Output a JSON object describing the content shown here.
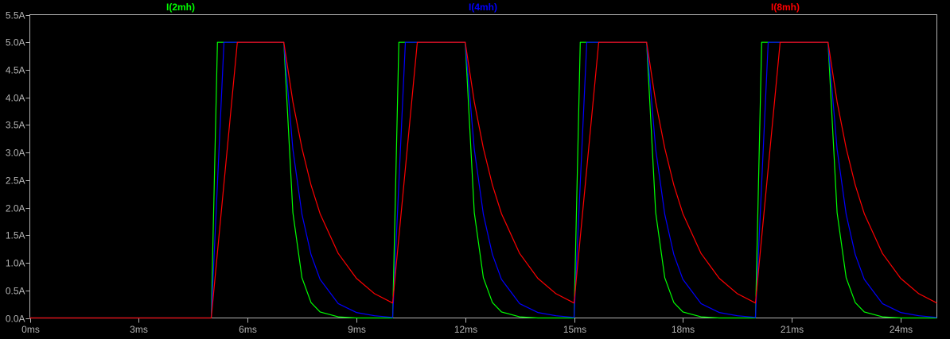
{
  "chart_data": {
    "type": "line",
    "title": "",
    "xlabel": "",
    "ylabel": "",
    "xlim": [
      0,
      25
    ],
    "ylim": [
      0,
      5.5
    ],
    "x_unit": "ms",
    "y_unit": "A",
    "x_ticks": [
      "0ms",
      "3ms",
      "6ms",
      "9ms",
      "12ms",
      "15ms",
      "18ms",
      "21ms",
      "24ms"
    ],
    "x_tick_values": [
      0,
      3,
      6,
      9,
      12,
      15,
      18,
      21,
      24
    ],
    "y_ticks": [
      "0.0A",
      "0.5A",
      "1.0A",
      "1.5A",
      "2.0A",
      "2.5A",
      "3.0A",
      "3.5A",
      "4.0A",
      "4.5A",
      "5.0A",
      "5.5A"
    ],
    "y_tick_values": [
      0,
      0.5,
      1,
      1.5,
      2,
      2.5,
      3,
      3.5,
      4,
      4.5,
      5,
      5.5
    ],
    "grid": false,
    "legend_position": "top",
    "background": "#000000",
    "axis_color": "#b4b4b4",
    "series": [
      {
        "name": "I(2mh)",
        "color": "#00ff00",
        "points": [
          [
            0,
            0
          ],
          [
            5,
            0
          ],
          [
            5.17,
            5
          ],
          [
            7,
            5
          ],
          [
            7.25,
            1.91
          ],
          [
            7.5,
            0.73
          ],
          [
            7.75,
            0.28
          ],
          [
            8,
            0.11
          ],
          [
            8.5,
            0.02
          ],
          [
            9,
            0
          ],
          [
            10,
            0
          ],
          [
            10.17,
            5
          ],
          [
            12,
            5
          ],
          [
            12.25,
            1.91
          ],
          [
            12.5,
            0.73
          ],
          [
            12.75,
            0.28
          ],
          [
            13,
            0.11
          ],
          [
            13.5,
            0.02
          ],
          [
            14,
            0
          ],
          [
            15,
            0
          ],
          [
            15.17,
            5
          ],
          [
            17,
            5
          ],
          [
            17.25,
            1.91
          ],
          [
            17.5,
            0.73
          ],
          [
            17.75,
            0.28
          ],
          [
            18,
            0.11
          ],
          [
            18.5,
            0.02
          ],
          [
            19,
            0
          ],
          [
            20,
            0
          ],
          [
            20.17,
            5
          ],
          [
            22,
            5
          ],
          [
            22.25,
            1.91
          ],
          [
            22.5,
            0.73
          ],
          [
            22.75,
            0.28
          ],
          [
            23,
            0.11
          ],
          [
            23.5,
            0.02
          ],
          [
            24,
            0
          ],
          [
            25,
            0
          ]
        ]
      },
      {
        "name": "I(4mh)",
        "color": "#0000ff",
        "points": [
          [
            0,
            0
          ],
          [
            5,
            0
          ],
          [
            5.35,
            5
          ],
          [
            7,
            5
          ],
          [
            7.25,
            3.06
          ],
          [
            7.5,
            1.88
          ],
          [
            7.75,
            1.15
          ],
          [
            8,
            0.7
          ],
          [
            8.5,
            0.26
          ],
          [
            9,
            0.1
          ],
          [
            9.5,
            0.04
          ],
          [
            10,
            0.01
          ],
          [
            10.35,
            5
          ],
          [
            12,
            5
          ],
          [
            12.25,
            3.06
          ],
          [
            12.5,
            1.88
          ],
          [
            12.75,
            1.15
          ],
          [
            13,
            0.7
          ],
          [
            13.5,
            0.26
          ],
          [
            14,
            0.1
          ],
          [
            14.5,
            0.04
          ],
          [
            15,
            0.01
          ],
          [
            15.35,
            5
          ],
          [
            17,
            5
          ],
          [
            17.25,
            3.06
          ],
          [
            17.5,
            1.88
          ],
          [
            17.75,
            1.15
          ],
          [
            18,
            0.7
          ],
          [
            18.5,
            0.26
          ],
          [
            19,
            0.1
          ],
          [
            19.5,
            0.04
          ],
          [
            20,
            0.01
          ],
          [
            20.35,
            5
          ],
          [
            22,
            5
          ],
          [
            22.25,
            3.06
          ],
          [
            22.5,
            1.88
          ],
          [
            22.75,
            1.15
          ],
          [
            23,
            0.7
          ],
          [
            23.5,
            0.26
          ],
          [
            24,
            0.1
          ],
          [
            24.5,
            0.04
          ],
          [
            25,
            0.01
          ]
        ]
      },
      {
        "name": "I(8mh)",
        "color": "#ff0000",
        "points": [
          [
            0,
            0
          ],
          [
            5,
            0
          ],
          [
            5.72,
            5
          ],
          [
            7,
            5
          ],
          [
            7.25,
            3.92
          ],
          [
            7.5,
            3.08
          ],
          [
            7.75,
            2.41
          ],
          [
            8,
            1.89
          ],
          [
            8.5,
            1.17
          ],
          [
            9,
            0.72
          ],
          [
            9.5,
            0.44
          ],
          [
            10,
            0.27
          ],
          [
            10.68,
            5
          ],
          [
            12,
            5
          ],
          [
            12.25,
            3.92
          ],
          [
            12.5,
            3.08
          ],
          [
            12.75,
            2.41
          ],
          [
            13,
            1.89
          ],
          [
            13.5,
            1.17
          ],
          [
            14,
            0.72
          ],
          [
            14.5,
            0.44
          ],
          [
            15,
            0.27
          ],
          [
            15.68,
            5
          ],
          [
            17,
            5
          ],
          [
            17.25,
            3.92
          ],
          [
            17.5,
            3.08
          ],
          [
            17.75,
            2.41
          ],
          [
            18,
            1.89
          ],
          [
            18.5,
            1.17
          ],
          [
            19,
            0.72
          ],
          [
            19.5,
            0.44
          ],
          [
            20,
            0.27
          ],
          [
            20.68,
            5
          ],
          [
            22,
            5
          ],
          [
            22.25,
            3.92
          ],
          [
            22.5,
            3.08
          ],
          [
            22.75,
            2.41
          ],
          [
            23,
            1.89
          ],
          [
            23.5,
            1.17
          ],
          [
            24,
            0.72
          ],
          [
            24.5,
            0.44
          ],
          [
            25,
            0.27
          ]
        ]
      }
    ]
  }
}
